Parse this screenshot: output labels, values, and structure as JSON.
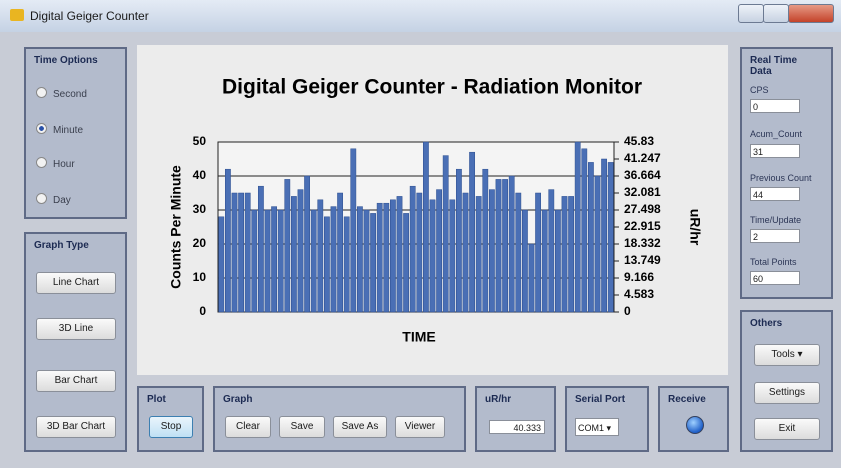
{
  "window": {
    "title": "Digital Geiger Counter"
  },
  "time_options": {
    "title": "Time Options",
    "options": [
      "Second",
      "Minute",
      "Hour",
      "Day"
    ],
    "selected": "Minute"
  },
  "graph_type": {
    "title": "Graph Type",
    "buttons": [
      "Line Chart",
      "3D Line",
      "Bar Chart",
      "3D Bar Chart"
    ]
  },
  "plot": {
    "title": "Plot",
    "button": "Stop"
  },
  "graph": {
    "title": "Graph",
    "buttons": [
      "Clear",
      "Save",
      "Save As",
      "Viewer"
    ]
  },
  "urhr": {
    "title": "uR/hr",
    "value": "40.333"
  },
  "serial_port": {
    "title": "Serial Port",
    "value": "COM1"
  },
  "receive": {
    "title": "Receive"
  },
  "real_time": {
    "title": "Real Time Data",
    "fields": [
      {
        "label": "CPS",
        "value": "0"
      },
      {
        "label": "Acum_Count",
        "value": "31"
      },
      {
        "label": "Previous Count",
        "value": "44"
      },
      {
        "label": "Time/Update",
        "value": "2"
      },
      {
        "label": "Total Points",
        "value": "60"
      }
    ]
  },
  "others": {
    "title": "Others",
    "buttons": [
      "Tools",
      "Settings",
      "Exit"
    ]
  },
  "chart_data": {
    "type": "bar",
    "title": "Digital Geiger Counter - Radiation Monitor",
    "y_label": "Counts Per Minute",
    "y2_label": "uR/hr",
    "x_label": "TIME",
    "values": [
      28,
      42,
      35,
      35,
      35,
      30,
      37,
      30,
      31,
      30,
      39,
      34,
      36,
      40,
      30,
      33,
      28,
      31,
      35,
      28,
      48,
      31,
      30,
      29,
      32,
      32,
      33,
      34,
      29,
      37,
      35,
      50,
      33,
      36,
      46,
      33,
      42,
      35,
      47,
      34,
      42,
      36,
      39,
      39,
      40,
      35,
      30,
      20,
      35,
      30,
      36,
      30,
      34,
      34,
      50,
      48,
      44,
      40,
      45,
      44
    ],
    "color": "#4a6fb5",
    "ylim": [
      0,
      50
    ],
    "yticks": [
      0,
      10,
      20,
      30,
      40,
      50
    ],
    "y2lim": [
      0,
      45.83
    ],
    "y2ticks": [
      0,
      4.583,
      9.166,
      13.749,
      18.332,
      22.915,
      27.498,
      32.081,
      36.664,
      41.247,
      45.83
    ],
    "grid": true
  }
}
